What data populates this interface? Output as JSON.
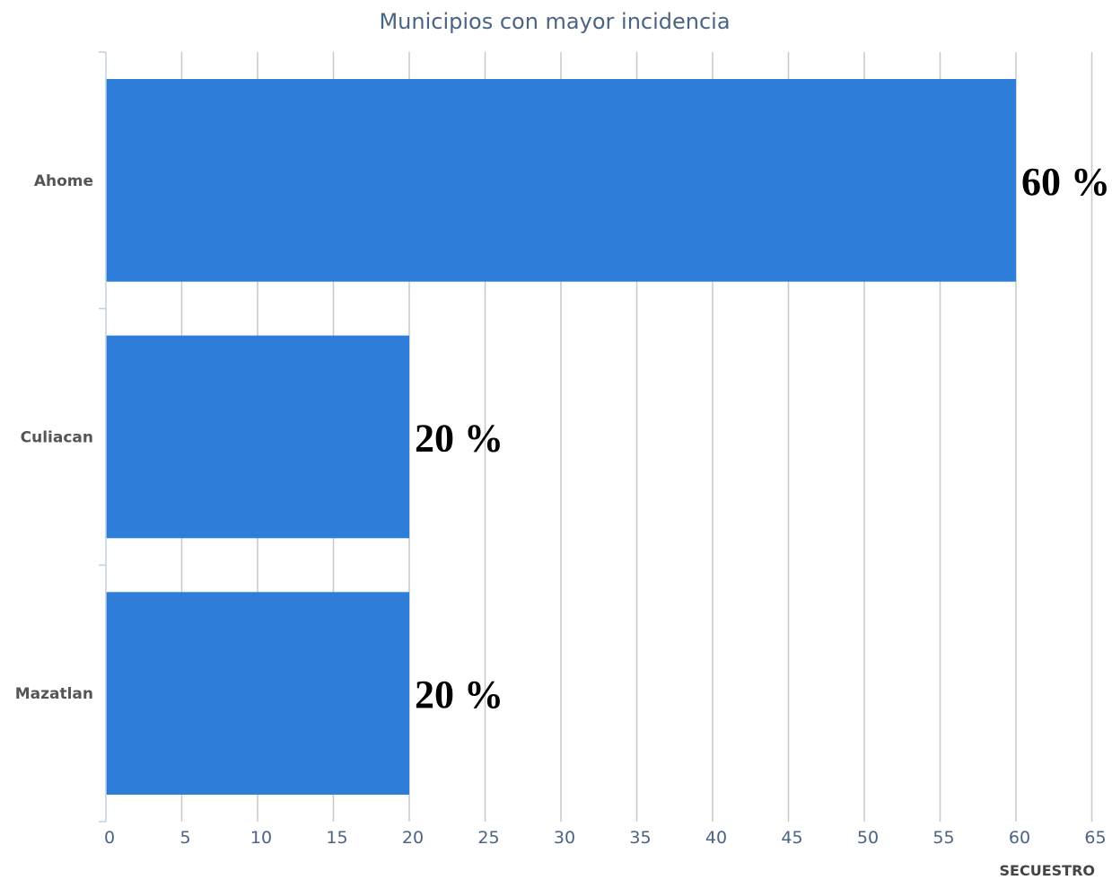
{
  "chart_data": {
    "type": "bar",
    "orientation": "horizontal",
    "title": "Municipios con mayor incidencia",
    "xlabel": "SECUESTRO",
    "categories": [
      "Ahome",
      "Culiacan",
      "Mazatlan"
    ],
    "values": [
      60,
      20,
      20
    ],
    "data_labels": [
      "60 %",
      "20 %",
      "20 %"
    ],
    "ticks": [
      "0",
      "5",
      "10",
      "15",
      "20",
      "25",
      "30",
      "35",
      "40",
      "45",
      "50",
      "55",
      "60",
      "65"
    ],
    "xlim": [
      0,
      65
    ],
    "grid": true,
    "colors": {
      "bar": "#2e7ed9"
    }
  }
}
